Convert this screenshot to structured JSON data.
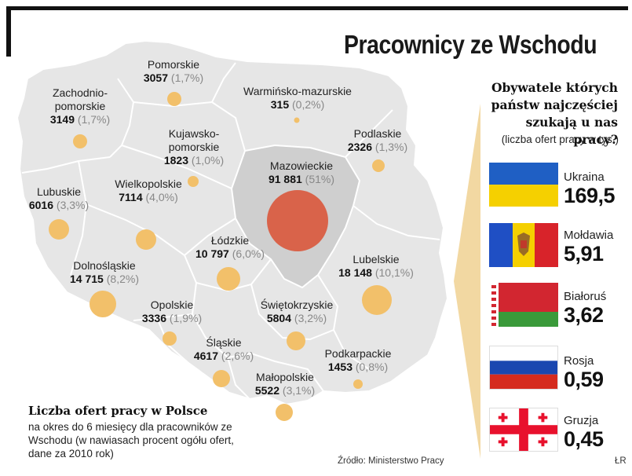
{
  "title": "Pracownicy ze Wschodu",
  "regions": [
    {
      "name": "Pomorskie",
      "value": "3057",
      "pct": "(1,7%)"
    },
    {
      "name": "Zachodnio-\npomorskie",
      "value": "3149",
      "pct": "(1,7%)"
    },
    {
      "name": "Warmińsko-mazurskie",
      "value": "315",
      "pct": "(0,2%)"
    },
    {
      "name": "Kujawsko-\npomorskie",
      "value": "1823",
      "pct": "(1,0%)"
    },
    {
      "name": "Podlaskie",
      "value": "2326",
      "pct": "(1,3%)"
    },
    {
      "name": "Mazowieckie",
      "value": "91 881",
      "pct": "(51%)"
    },
    {
      "name": "Lubuskie",
      "value": "6016",
      "pct": "(3,3%)"
    },
    {
      "name": "Wielkopolskie",
      "value": "7114",
      "pct": "(4,0%)"
    },
    {
      "name": "Łódzkie",
      "value": "10 797",
      "pct": "(6,0%)"
    },
    {
      "name": "Dolnośląskie",
      "value": "14 715",
      "pct": "(8,2%)"
    },
    {
      "name": "Lubelskie",
      "value": "18 148",
      "pct": "(10,1%)"
    },
    {
      "name": "Opolskie",
      "value": "3336",
      "pct": "(1,9%)"
    },
    {
      "name": "Świętokrzyskie",
      "value": "5804",
      "pct": "(3,2%)"
    },
    {
      "name": "Śląskie",
      "value": "4617",
      "pct": "(2,6%)"
    },
    {
      "name": "Podkarpackie",
      "value": "1453",
      "pct": "(0,8%)"
    },
    {
      "name": "Małopolskie",
      "value": "5522",
      "pct": "(3,1%)"
    }
  ],
  "legend": {
    "title": "Liczba ofert pracy w Polsce",
    "description": "na okres do 6 miesięcy dla pracowników ze Wschodu (w nawiasach procent ogółu ofert, dane za 2010 rok)"
  },
  "source": "Źródło: Ministerstwo Pracy",
  "credit": "ŁR",
  "panel": {
    "title": "Obywatele których państw najczęściej szukają u nas pracy?",
    "subtitle": "(liczba ofert pracy w tys.)",
    "countries": [
      {
        "name": "Ukraina",
        "value": "169,5",
        "flag": "ukraine-flag",
        "colors": [
          "#1f5fc4",
          "#f5d000"
        ]
      },
      {
        "name": "Mołdawia",
        "value": "5,91",
        "flag": "moldova-flag",
        "colors": [
          "#1f4fc4",
          "#f5d000",
          "#d8232a"
        ]
      },
      {
        "name": "Białoruś",
        "value": "3,62",
        "flag": "belarus-flag",
        "colors": [
          "#d22630",
          "#3a9a3a",
          "#ffffff"
        ]
      },
      {
        "name": "Rosja",
        "value": "0,59",
        "flag": "russia-flag",
        "colors": [
          "#ffffff",
          "#1a47b0",
          "#d52b1e"
        ]
      },
      {
        "name": "Gruzja",
        "value": "0,45",
        "flag": "georgia-flag",
        "colors": [
          "#ffffff",
          "#e8112d"
        ]
      }
    ]
  },
  "colors": {
    "land": "#e6e6e6",
    "highlight": "#cfcfcf",
    "border": "#ffffff",
    "dot": "#f2c06a",
    "big_dot": "#d9634a",
    "panel_arrow": "#f2d8a2"
  }
}
